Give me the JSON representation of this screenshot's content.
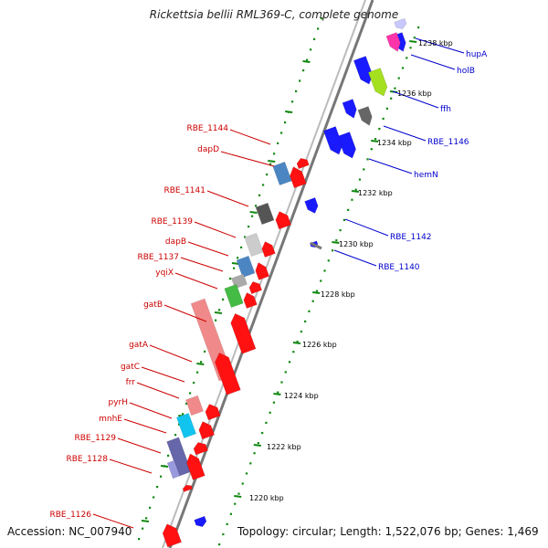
{
  "title": "Rickettsia bellii RML369-C, complete genome",
  "footer": {
    "accession": "Accession: NC_007940",
    "stats": "Topology: circular; Length: 1,522,076 bp; Genes: 1,469"
  },
  "colors": {
    "left_label": "#cc0000",
    "right_label": "#0000cc",
    "axis": "#888888",
    "dots": "#118811",
    "red_arrow": "#ff0000",
    "blue_arrow": "#0000ff"
  },
  "ticks": [
    "1220 kbp",
    "1222 kbp",
    "1224 kbp",
    "1226 kbp",
    "1228 kbp",
    "1230 kbp",
    "1232 kbp",
    "1234 kbp",
    "1236 kbp",
    "1238 kbp"
  ],
  "left_genes": [
    "RBE_1144",
    "dapD",
    "RBE_1141",
    "RBE_1139",
    "dapB",
    "RBE_1137",
    "yqiX",
    "gatB",
    "gatA",
    "gatC",
    "frr",
    "pyrH",
    "mnhE",
    "RBE_1129",
    "RBE_1128",
    "RBE_1126"
  ],
  "right_genes": [
    "hupA",
    "holB",
    "ffh",
    "RBE_1146",
    "hemN",
    "RBE_1142",
    "RBE_1140"
  ]
}
